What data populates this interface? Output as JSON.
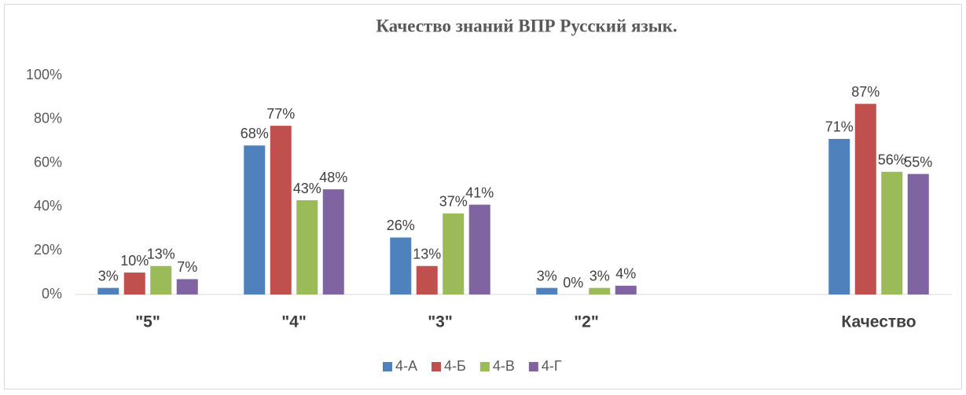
{
  "chart_data": {
    "type": "bar",
    "title": "Качество знаний  ВПР   Русский язык.",
    "categories": [
      "\"5\"",
      "\"4\"",
      "\"3\"",
      "\"2\"",
      null,
      "Качество"
    ],
    "series": [
      {
        "name": "4-А",
        "color": "#4f81bd",
        "values": [
          3,
          68,
          26,
          3,
          null,
          71
        ],
        "value_labels": [
          "3%",
          "68%",
          "26%",
          "3%",
          null,
          "71%"
        ]
      },
      {
        "name": "4-Б",
        "color": "#c0504d",
        "values": [
          10,
          77,
          13,
          0,
          null,
          87
        ],
        "value_labels": [
          "10%",
          "77%",
          "13%",
          "0%",
          null,
          "87%"
        ]
      },
      {
        "name": "4-В",
        "color": "#9bbb59",
        "values": [
          13,
          43,
          37,
          3,
          null,
          56
        ],
        "value_labels": [
          "13%",
          "43%",
          "37%",
          "3%",
          null,
          "56%"
        ]
      },
      {
        "name": "4-Г",
        "color": "#8064a2",
        "values": [
          7,
          48,
          41,
          4,
          null,
          55
        ],
        "value_labels": [
          "7%",
          "48%",
          "41%",
          "4%",
          null,
          "55%"
        ]
      }
    ],
    "ylim": [
      0,
      100
    ],
    "yticks": [
      {
        "value": 0,
        "label": "0%"
      },
      {
        "value": 20,
        "label": "20%"
      },
      {
        "value": 40,
        "label": "40%"
      },
      {
        "value": 60,
        "label": "60%"
      },
      {
        "value": 80,
        "label": "80%"
      },
      {
        "value": 100,
        "label": "100%"
      }
    ],
    "grid": false,
    "legend": "bottom"
  }
}
